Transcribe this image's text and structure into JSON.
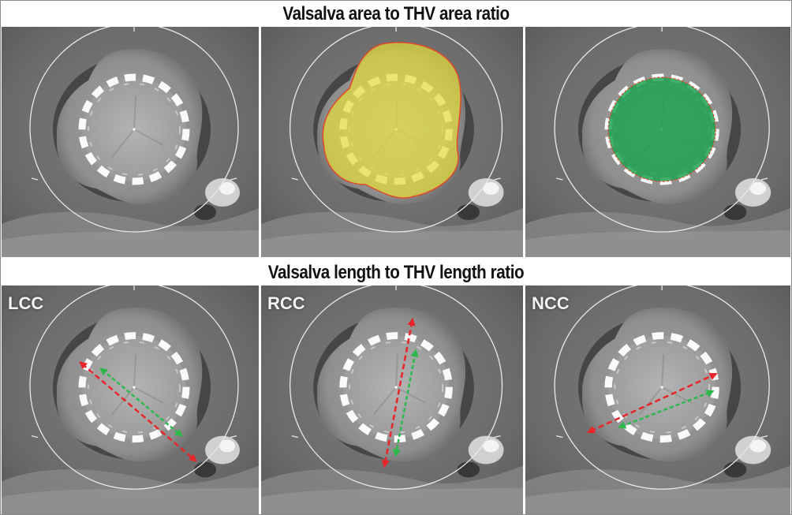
{
  "titles": {
    "area": "Valsalva area to THV area ratio",
    "length": "Valsalva length to THV length ratio"
  },
  "panels": {
    "top": [
      {
        "id": "plain",
        "overlay": "none"
      },
      {
        "id": "valsalva-area",
        "overlay": "yellow-fill",
        "overlay_color": "#e3dc3c"
      },
      {
        "id": "thv-area",
        "overlay": "green-fill",
        "overlay_color": "#1aa04e"
      }
    ],
    "bottom": [
      {
        "id": "lcc",
        "label": "LCC"
      },
      {
        "id": "rcc",
        "label": "RCC"
      },
      {
        "id": "ncc",
        "label": "NCC"
      }
    ]
  },
  "colors": {
    "valsalva_arrow": "#e8262a",
    "thv_arrow": "#2db84a",
    "contour": "#e04a2a",
    "stent": "#ffffff",
    "background_tissue": "#6f6f6f"
  }
}
